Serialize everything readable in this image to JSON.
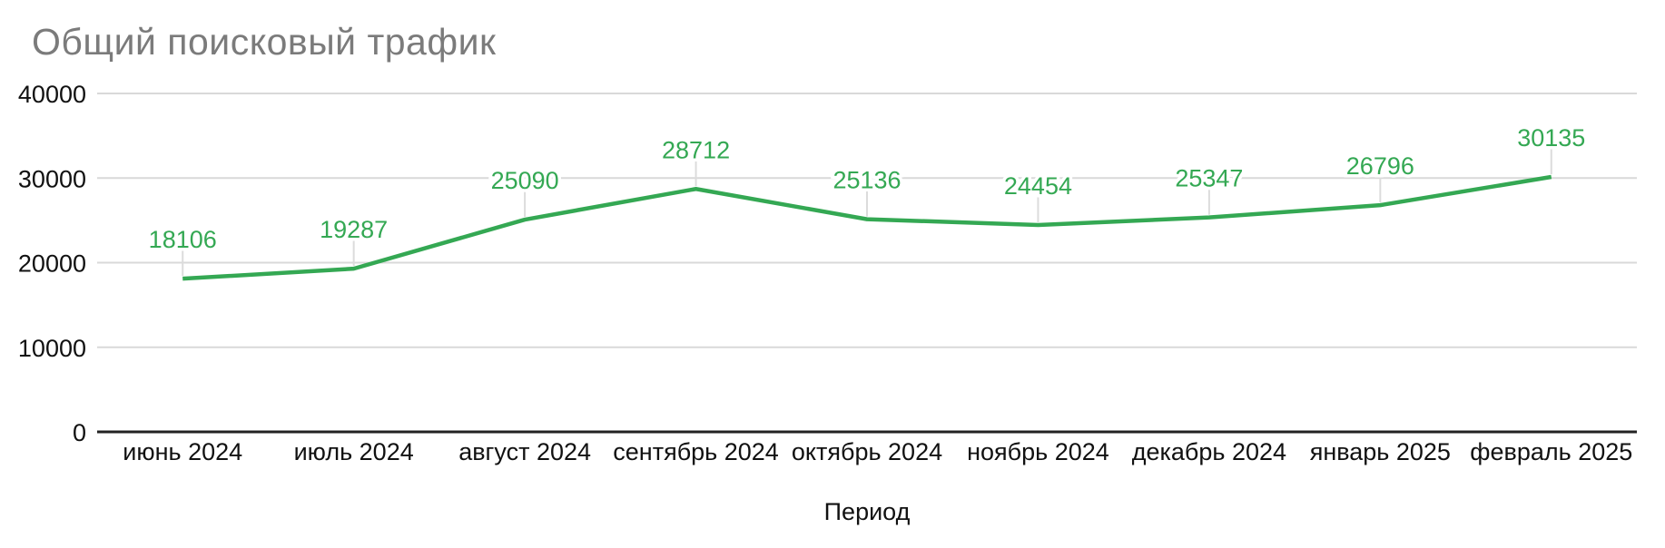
{
  "chart_data": {
    "type": "line",
    "title": "Общий поисковый трафик",
    "xlabel": "Период",
    "ylabel": "",
    "categories": [
      "июнь 2024",
      "июль 2024",
      "август 2024",
      "сентябрь 2024",
      "октябрь 2024",
      "ноябрь 2024",
      "декабрь 2024",
      "январь 2025",
      "февраль 2025"
    ],
    "values": [
      18106,
      19287,
      25090,
      28712,
      25136,
      24454,
      25347,
      26796,
      30135
    ],
    "y_ticks": [
      0,
      10000,
      20000,
      30000,
      40000
    ],
    "ylim": [
      0,
      40000
    ],
    "grid": "horizontal",
    "legend": "none",
    "data_labels": "above-points",
    "colors": {
      "series_line": "#34a853",
      "data_label": "#34a853",
      "title_text": "#7b7b7b",
      "axis_text": "#111111",
      "gridline": "#d9d9d9",
      "baseline": "#222222",
      "leader_line": "#dcdcdc",
      "background": "#ffffff"
    }
  }
}
